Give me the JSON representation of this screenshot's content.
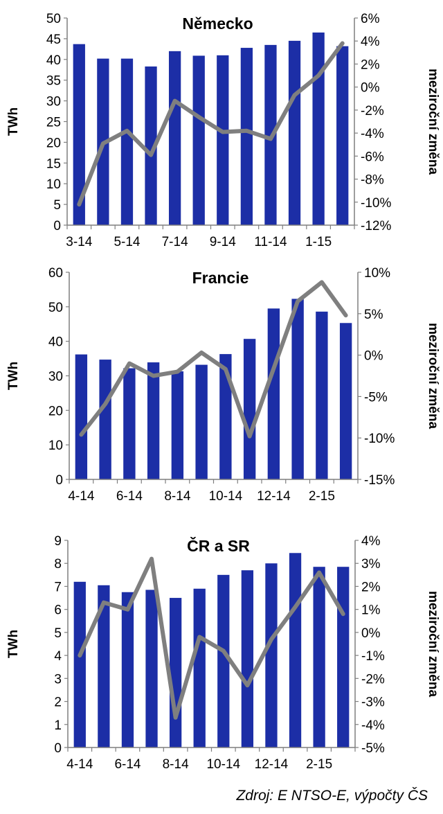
{
  "chart_data": [
    {
      "type": "bar",
      "title": "Německo",
      "ylabel": "TWh",
      "ylabel2": "meziroční změna",
      "ylim": [
        0,
        50
      ],
      "yticks": [
        "0",
        "5",
        "10",
        "15",
        "20",
        "25",
        "30",
        "35",
        "40",
        "45",
        "50"
      ],
      "y2lim": [
        -12,
        6
      ],
      "y2ticks": [
        "-12%",
        "-10%",
        "-8%",
        "-6%",
        "-4%",
        "-2%",
        "0%",
        "2%",
        "4%",
        "6%"
      ],
      "categories": [
        "3-14",
        "4-14",
        "5-14",
        "6-14",
        "7-14",
        "8-14",
        "9-14",
        "10-14",
        "11-14",
        "12-14",
        "1-15",
        "2-15"
      ],
      "xtick_labels": [
        "3-14",
        "5-14",
        "7-14",
        "9-14",
        "11-14",
        "1-15"
      ],
      "series": [
        {
          "kind": "bar",
          "axis": "left",
          "values": [
            43.7,
            40.2,
            40.2,
            38.3,
            42.0,
            40.9,
            41.0,
            42.8,
            43.5,
            44.5,
            46.5,
            43.2
          ]
        },
        {
          "kind": "line",
          "axis": "right",
          "values": [
            -10.2,
            -4.9,
            -3.8,
            -5.9,
            -1.2,
            -2.6,
            -3.9,
            -3.8,
            -4.5,
            -0.7,
            1.0,
            3.8
          ]
        }
      ],
      "grid": false
    },
    {
      "type": "bar",
      "title": "Francie",
      "ylabel": "TWh",
      "ylabel2": "meziroční změna",
      "ylim": [
        0,
        60
      ],
      "yticks": [
        "0",
        "10",
        "20",
        "30",
        "40",
        "50",
        "60"
      ],
      "y2lim": [
        -15,
        10
      ],
      "y2ticks": [
        "-15%",
        "-10%",
        "-5%",
        "0%",
        "5%",
        "10%"
      ],
      "categories": [
        "4-14",
        "5-14",
        "6-14",
        "7-14",
        "8-14",
        "9-14",
        "10-14",
        "11-14",
        "12-14",
        "1-15",
        "2-15",
        "3-15"
      ],
      "xtick_labels": [
        "4-14",
        "6-14",
        "8-14",
        "10-14",
        "12-14",
        "2-15"
      ],
      "series": [
        {
          "kind": "bar",
          "axis": "left",
          "values": [
            36.2,
            34.7,
            32.2,
            33.9,
            31.3,
            33.2,
            36.3,
            40.7,
            49.5,
            52.3,
            48.6,
            45.3
          ]
        },
        {
          "kind": "line",
          "axis": "right",
          "values": [
            -9.6,
            -5.9,
            -1.0,
            -2.5,
            -2.0,
            0.3,
            -1.7,
            -9.8,
            -1.6,
            6.5,
            8.8,
            4.8
          ]
        }
      ],
      "grid": false
    },
    {
      "type": "bar",
      "title": "ČR a SR",
      "ylabel": "TWh",
      "ylabel2": "meziroční změna",
      "ylim": [
        0,
        9
      ],
      "yticks": [
        "0",
        "1",
        "2",
        "3",
        "4",
        "5",
        "6",
        "7",
        "8",
        "9"
      ],
      "y2lim": [
        -5,
        4
      ],
      "y2ticks": [
        "-5%",
        "-4%",
        "-3%",
        "-2%",
        "-1%",
        "0%",
        "1%",
        "2%",
        "3%",
        "4%"
      ],
      "categories": [
        "4-14",
        "5-14",
        "6-14",
        "7-14",
        "8-14",
        "9-14",
        "10-14",
        "11-14",
        "12-14",
        "1-15",
        "2-15",
        "3-15"
      ],
      "xtick_labels": [
        "4-14",
        "6-14",
        "8-14",
        "10-14",
        "12-14",
        "2-15"
      ],
      "series": [
        {
          "kind": "bar",
          "axis": "left",
          "values": [
            7.2,
            7.05,
            6.75,
            6.85,
            6.5,
            6.9,
            7.5,
            7.7,
            8.0,
            8.45,
            7.85,
            7.85
          ]
        },
        {
          "kind": "line",
          "axis": "right",
          "values": [
            -1.0,
            1.3,
            1.0,
            3.2,
            -3.7,
            -0.2,
            -0.8,
            -2.3,
            -0.3,
            1.1,
            2.6,
            0.8
          ]
        }
      ],
      "grid": false
    }
  ],
  "source": "Zdroj: E NTSO-E, výpočty ČS",
  "colors": {
    "bar": "#1c2ea6",
    "line": "#7f7f7f",
    "axis": "#7f7f7f"
  }
}
